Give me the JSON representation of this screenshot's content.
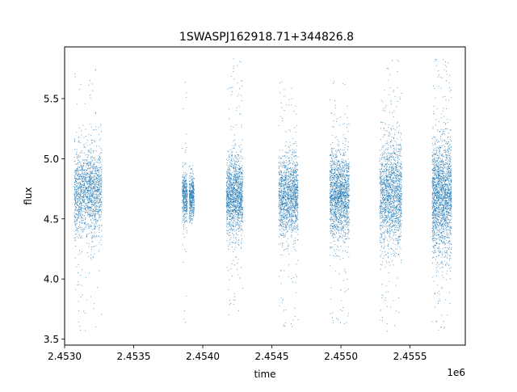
{
  "chart_data": {
    "type": "scatter",
    "title": "1SWASPJ162918.71+344826.8",
    "xlabel": "time",
    "ylabel": "flux",
    "x_offset_label": "1e6",
    "xlim": [
      2453000,
      2455900
    ],
    "ylim": [
      3.45,
      5.93
    ],
    "x_ticks": [
      2453000,
      2453500,
      2454000,
      2454500,
      2455000,
      2455500
    ],
    "x_tick_labels": [
      "2.4530",
      "2.4535",
      "2.4540",
      "2.4545",
      "2.4550",
      "2.4555"
    ],
    "y_ticks": [
      3.5,
      4.0,
      4.5,
      5.0,
      5.5
    ],
    "y_tick_labels": [
      "3.5",
      "4.0",
      "4.5",
      "5.0",
      "5.5"
    ],
    "grid": false,
    "legend": "none",
    "marker_color": "#1f77b4",
    "series": [
      {
        "points_description": "dense vertical clusters of observations (seasons)",
        "clusters": [
          {
            "x_center": 2453170,
            "x_halfwidth": 100,
            "y_center": 4.72,
            "y_spread": 0.18,
            "y_min": 3.57,
            "y_max": 5.77,
            "density": 1.0
          },
          {
            "x_center": 2453870,
            "x_halfwidth": 18,
            "y_center": 4.68,
            "y_spread": 0.1,
            "y_min": 3.6,
            "y_max": 5.75,
            "density": 0.25
          },
          {
            "x_center": 2453920,
            "x_halfwidth": 18,
            "y_center": 4.68,
            "y_spread": 0.1,
            "y_min": 4.45,
            "y_max": 4.95,
            "density": 0.25
          },
          {
            "x_center": 2454230,
            "x_halfwidth": 60,
            "y_center": 4.69,
            "y_spread": 0.16,
            "y_min": 3.7,
            "y_max": 5.83,
            "density": 0.85
          },
          {
            "x_center": 2454620,
            "x_halfwidth": 70,
            "y_center": 4.7,
            "y_spread": 0.17,
            "y_min": 3.6,
            "y_max": 5.65,
            "density": 0.85
          },
          {
            "x_center": 2454990,
            "x_halfwidth": 70,
            "y_center": 4.7,
            "y_spread": 0.18,
            "y_min": 3.62,
            "y_max": 5.68,
            "density": 1.0
          },
          {
            "x_center": 2455360,
            "x_halfwidth": 80,
            "y_center": 4.71,
            "y_spread": 0.21,
            "y_min": 3.56,
            "y_max": 5.83,
            "density": 1.0
          },
          {
            "x_center": 2455730,
            "x_halfwidth": 70,
            "y_center": 4.69,
            "y_spread": 0.24,
            "y_min": 3.56,
            "y_max": 5.83,
            "density": 1.2
          }
        ]
      }
    ]
  }
}
